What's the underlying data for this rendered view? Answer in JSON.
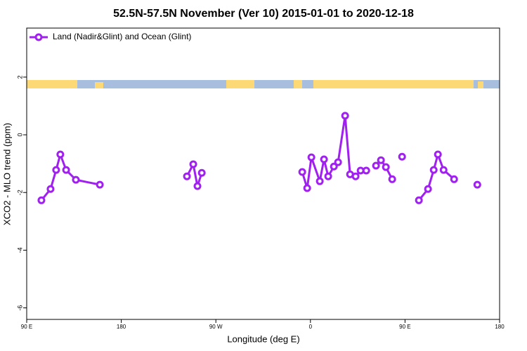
{
  "chart_data": {
    "type": "line",
    "title": "52.5N-57.5N November (Ver 10)   2015-01-01 to 2020-12-18",
    "x_label": "Longitude (deg E)",
    "y_label": "XCO2 - MLO trend (ppm)",
    "xlim": [
      90,
      540
    ],
    "ylim": [
      -6.4,
      3.7
    ],
    "xticks": [
      {
        "value": 90,
        "label": "90 E"
      },
      180,
      {
        "value": 270,
        "label": "90 W"
      },
      {
        "value": 360,
        "label": "0"
      },
      {
        "value": 450,
        "label": "90 E"
      },
      {
        "value": 540,
        "label": "180"
      }
    ],
    "yticks": [
      -6,
      -4,
      -2,
      0,
      2
    ],
    "legend": "top-left",
    "x": [
      104,
      112.7,
      118,
      122,
      127.5,
      136.8,
      159.6,
      null,
      242.5,
      248.5,
      252.5,
      256.6,
      null,
      352.2,
      356.9,
      360.9,
      368.9,
      372.9,
      376.9,
      382.3,
      386.3,
      393,
      397.7,
      403,
      407.7,
      413.1,
      null,
      422.4,
      427.1,
      431.8,
      437.8,
      null,
      447.2,
      null,
      463.2,
      471.9,
      477.3,
      481.3,
      486.7,
      496.7,
      null,
      518.8
    ],
    "series": [
      {
        "name": "Land (Nadir&Glint) and Ocean (Glint)",
        "color": "#a020f0",
        "values": [
          -2.27,
          -1.88,
          -1.22,
          -0.68,
          -1.22,
          -1.56,
          -1.73,
          null,
          -1.44,
          -1.02,
          -1.78,
          -1.32,
          null,
          -1.29,
          -1.85,
          -0.78,
          -1.61,
          -0.85,
          -1.44,
          -1.1,
          -0.95,
          0.66,
          -1.37,
          -1.44,
          -1.24,
          -1.24,
          null,
          -1.07,
          -0.88,
          -1.12,
          -1.54,
          null,
          -0.76,
          null,
          -2.27,
          -1.88,
          -1.22,
          -0.68,
          -1.22,
          -1.54,
          null,
          -1.73
        ]
      }
    ]
  }
}
